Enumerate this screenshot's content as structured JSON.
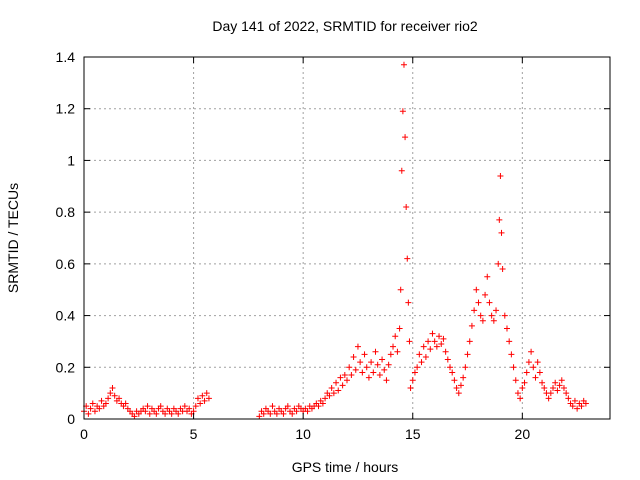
{
  "chart_data": {
    "type": "scatter",
    "title": "Day 141 of 2022, SRMTID for receiver rio2",
    "xlabel": "GPS time / hours",
    "ylabel": "SRMTID / TECUs",
    "xlim": [
      0,
      24
    ],
    "ylim": [
      0,
      1.4
    ],
    "xticks": [
      0,
      5,
      10,
      15,
      20
    ],
    "yticks": [
      0,
      0.2,
      0.4,
      0.6,
      0.8,
      1,
      1.2,
      1.4
    ],
    "ytick_labels": [
      "0",
      "0.2",
      "0.4",
      "0.6",
      "0.8",
      "1",
      "1.2",
      "1.4"
    ],
    "grid": true,
    "marker": "+",
    "color": "#ff0000",
    "series": [
      {
        "name": "SRMTID",
        "points": [
          [
            0.0,
            0.03
          ],
          [
            0.1,
            0.05
          ],
          [
            0.2,
            0.02
          ],
          [
            0.3,
            0.04
          ],
          [
            0.4,
            0.06
          ],
          [
            0.5,
            0.03
          ],
          [
            0.6,
            0.05
          ],
          [
            0.7,
            0.04
          ],
          [
            0.8,
            0.07
          ],
          [
            0.9,
            0.05
          ],
          [
            1.0,
            0.06
          ],
          [
            1.1,
            0.08
          ],
          [
            1.2,
            0.1
          ],
          [
            1.3,
            0.12
          ],
          [
            1.4,
            0.09
          ],
          [
            1.5,
            0.07
          ],
          [
            1.6,
            0.08
          ],
          [
            1.7,
            0.06
          ],
          [
            1.8,
            0.05
          ],
          [
            1.9,
            0.06
          ],
          [
            2.0,
            0.04
          ],
          [
            2.1,
            0.03
          ],
          [
            2.2,
            0.02
          ],
          [
            2.3,
            0.01
          ],
          [
            2.4,
            0.03
          ],
          [
            2.5,
            0.02
          ],
          [
            2.6,
            0.03
          ],
          [
            2.7,
            0.04
          ],
          [
            2.8,
            0.03
          ],
          [
            2.9,
            0.05
          ],
          [
            3.0,
            0.02
          ],
          [
            3.1,
            0.04
          ],
          [
            3.2,
            0.03
          ],
          [
            3.3,
            0.02
          ],
          [
            3.4,
            0.04
          ],
          [
            3.5,
            0.05
          ],
          [
            3.6,
            0.03
          ],
          [
            3.7,
            0.02
          ],
          [
            3.8,
            0.04
          ],
          [
            3.9,
            0.03
          ],
          [
            4.0,
            0.02
          ],
          [
            4.1,
            0.04
          ],
          [
            4.2,
            0.03
          ],
          [
            4.3,
            0.02
          ],
          [
            4.4,
            0.04
          ],
          [
            4.5,
            0.03
          ],
          [
            4.6,
            0.05
          ],
          [
            4.7,
            0.03
          ],
          [
            4.8,
            0.04
          ],
          [
            4.9,
            0.02
          ],
          [
            5.0,
            0.03
          ],
          [
            5.1,
            0.05
          ],
          [
            5.2,
            0.08
          ],
          [
            5.3,
            0.06
          ],
          [
            5.4,
            0.09
          ],
          [
            5.5,
            0.07
          ],
          [
            5.6,
            0.1
          ],
          [
            5.7,
            0.08
          ],
          [
            8.0,
            0.01
          ],
          [
            8.1,
            0.03
          ],
          [
            8.2,
            0.02
          ],
          [
            8.3,
            0.04
          ],
          [
            8.4,
            0.03
          ],
          [
            8.5,
            0.02
          ],
          [
            8.6,
            0.05
          ],
          [
            8.7,
            0.03
          ],
          [
            8.8,
            0.02
          ],
          [
            8.9,
            0.04
          ],
          [
            9.0,
            0.03
          ],
          [
            9.1,
            0.02
          ],
          [
            9.2,
            0.04
          ],
          [
            9.3,
            0.05
          ],
          [
            9.4,
            0.03
          ],
          [
            9.5,
            0.02
          ],
          [
            9.6,
            0.04
          ],
          [
            9.7,
            0.03
          ],
          [
            9.8,
            0.05
          ],
          [
            9.9,
            0.04
          ],
          [
            10.0,
            0.03
          ],
          [
            10.1,
            0.04
          ],
          [
            10.2,
            0.03
          ],
          [
            10.3,
            0.05
          ],
          [
            10.4,
            0.04
          ],
          [
            10.5,
            0.05
          ],
          [
            10.6,
            0.06
          ],
          [
            10.7,
            0.05
          ],
          [
            10.8,
            0.07
          ],
          [
            10.9,
            0.06
          ],
          [
            11.0,
            0.08
          ],
          [
            11.1,
            0.1
          ],
          [
            11.2,
            0.09
          ],
          [
            11.3,
            0.12
          ],
          [
            11.4,
            0.1
          ],
          [
            11.5,
            0.14
          ],
          [
            11.6,
            0.11
          ],
          [
            11.7,
            0.16
          ],
          [
            11.8,
            0.13
          ],
          [
            11.9,
            0.17
          ],
          [
            12.0,
            0.15
          ],
          [
            12.1,
            0.2
          ],
          [
            12.2,
            0.17
          ],
          [
            12.3,
            0.24
          ],
          [
            12.4,
            0.19
          ],
          [
            12.5,
            0.28
          ],
          [
            12.6,
            0.22
          ],
          [
            12.7,
            0.18
          ],
          [
            12.8,
            0.25
          ],
          [
            12.9,
            0.2
          ],
          [
            13.0,
            0.16
          ],
          [
            13.1,
            0.22
          ],
          [
            13.2,
            0.18
          ],
          [
            13.3,
            0.26
          ],
          [
            13.4,
            0.21
          ],
          [
            13.5,
            0.17
          ],
          [
            13.6,
            0.23
          ],
          [
            13.7,
            0.19
          ],
          [
            13.8,
            0.15
          ],
          [
            13.9,
            0.21
          ],
          [
            14.0,
            0.25
          ],
          [
            14.1,
            0.28
          ],
          [
            14.2,
            0.32
          ],
          [
            14.3,
            0.26
          ],
          [
            14.4,
            0.35
          ],
          [
            14.45,
            0.5
          ],
          [
            14.5,
            0.96
          ],
          [
            14.55,
            1.19
          ],
          [
            14.6,
            1.37
          ],
          [
            14.65,
            1.09
          ],
          [
            14.7,
            0.82
          ],
          [
            14.75,
            0.62
          ],
          [
            14.8,
            0.45
          ],
          [
            14.85,
            0.3
          ],
          [
            14.9,
            0.12
          ],
          [
            15.0,
            0.15
          ],
          [
            15.1,
            0.18
          ],
          [
            15.2,
            0.2
          ],
          [
            15.3,
            0.25
          ],
          [
            15.4,
            0.22
          ],
          [
            15.5,
            0.28
          ],
          [
            15.6,
            0.24
          ],
          [
            15.7,
            0.3
          ],
          [
            15.8,
            0.27
          ],
          [
            15.9,
            0.33
          ],
          [
            16.0,
            0.3
          ],
          [
            16.1,
            0.28
          ],
          [
            16.2,
            0.32
          ],
          [
            16.3,
            0.29
          ],
          [
            16.4,
            0.31
          ],
          [
            16.5,
            0.26
          ],
          [
            16.6,
            0.23
          ],
          [
            16.7,
            0.2
          ],
          [
            16.8,
            0.18
          ],
          [
            16.9,
            0.15
          ],
          [
            17.0,
            0.12
          ],
          [
            17.1,
            0.1
          ],
          [
            17.2,
            0.13
          ],
          [
            17.3,
            0.16
          ],
          [
            17.4,
            0.2
          ],
          [
            17.5,
            0.25
          ],
          [
            17.6,
            0.3
          ],
          [
            17.7,
            0.36
          ],
          [
            17.8,
            0.42
          ],
          [
            17.9,
            0.5
          ],
          [
            18.0,
            0.45
          ],
          [
            18.1,
            0.4
          ],
          [
            18.2,
            0.38
          ],
          [
            18.3,
            0.48
          ],
          [
            18.4,
            0.55
          ],
          [
            18.5,
            0.45
          ],
          [
            18.6,
            0.4
          ],
          [
            18.7,
            0.38
          ],
          [
            18.8,
            0.42
          ],
          [
            18.9,
            0.6
          ],
          [
            18.95,
            0.77
          ],
          [
            19.0,
            0.94
          ],
          [
            19.05,
            0.72
          ],
          [
            19.1,
            0.58
          ],
          [
            19.2,
            0.4
          ],
          [
            19.3,
            0.35
          ],
          [
            19.4,
            0.3
          ],
          [
            19.5,
            0.25
          ],
          [
            19.6,
            0.2
          ],
          [
            19.7,
            0.15
          ],
          [
            19.8,
            0.1
          ],
          [
            19.9,
            0.08
          ],
          [
            20.0,
            0.12
          ],
          [
            20.1,
            0.14
          ],
          [
            20.2,
            0.18
          ],
          [
            20.3,
            0.22
          ],
          [
            20.4,
            0.26
          ],
          [
            20.5,
            0.2
          ],
          [
            20.6,
            0.16
          ],
          [
            20.7,
            0.22
          ],
          [
            20.8,
            0.18
          ],
          [
            20.9,
            0.14
          ],
          [
            21.0,
            0.12
          ],
          [
            21.1,
            0.1
          ],
          [
            21.2,
            0.08
          ],
          [
            21.3,
            0.1
          ],
          [
            21.4,
            0.12
          ],
          [
            21.5,
            0.14
          ],
          [
            21.6,
            0.11
          ],
          [
            21.7,
            0.13
          ],
          [
            21.8,
            0.15
          ],
          [
            21.9,
            0.12
          ],
          [
            22.0,
            0.1
          ],
          [
            22.1,
            0.08
          ],
          [
            22.2,
            0.06
          ],
          [
            22.3,
            0.05
          ],
          [
            22.4,
            0.07
          ],
          [
            22.5,
            0.04
          ],
          [
            22.6,
            0.06
          ],
          [
            22.7,
            0.05
          ],
          [
            22.8,
            0.07
          ],
          [
            22.9,
            0.06
          ]
        ]
      }
    ]
  }
}
